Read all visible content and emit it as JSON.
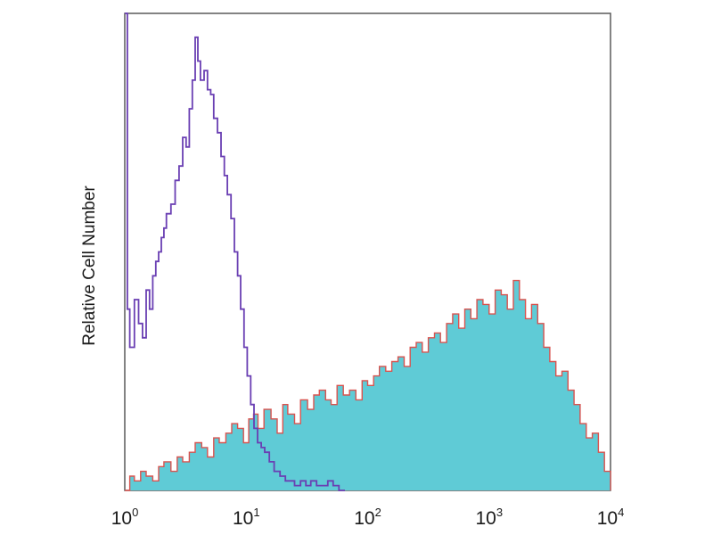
{
  "chart_data": {
    "type": "area",
    "ylabel": "Relative Cell Number",
    "xlabel": "",
    "xscale": "log",
    "xlim": [
      1,
      10000
    ],
    "ylim": [
      0,
      100
    ],
    "grid": false,
    "legend": "none",
    "x_ticks": [
      {
        "base": "10",
        "exp": "0",
        "value": 1
      },
      {
        "base": "10",
        "exp": "1",
        "value": 10
      },
      {
        "base": "10",
        "exp": "2",
        "value": 100
      },
      {
        "base": "10",
        "exp": "3",
        "value": 1000
      },
      {
        "base": "10",
        "exp": "4",
        "value": 10000
      }
    ],
    "series": [
      {
        "style": "filled",
        "fill_color": "#5fcbd6",
        "edge_color": "#d9534f",
        "x": [
          1,
          1.1,
          1.2,
          1.35,
          1.5,
          1.7,
          1.9,
          2.1,
          2.4,
          2.7,
          3.0,
          3.4,
          3.8,
          4.3,
          4.8,
          5.4,
          6.0,
          6.8,
          7.6,
          8.5,
          9.5,
          10.5,
          11.5,
          12.5,
          14,
          16,
          18,
          20,
          22,
          25,
          28,
          32,
          36,
          40,
          45,
          50,
          56,
          63,
          71,
          80,
          90,
          100,
          112,
          125,
          141,
          158,
          178,
          200,
          224,
          251,
          282,
          316,
          355,
          398,
          447,
          501,
          562,
          631,
          708,
          794,
          891,
          1000,
          1122,
          1259,
          1413,
          1585,
          1778,
          1995,
          2239,
          2512,
          2818,
          3162,
          3548,
          3981,
          4467,
          5012,
          5623,
          6310,
          7079,
          7943,
          8913,
          10000
        ],
        "y": [
          0,
          3,
          2,
          4,
          3,
          2,
          5,
          6,
          4,
          7,
          6,
          8,
          10,
          9,
          7,
          11,
          10,
          12,
          14,
          13,
          10,
          15,
          16,
          13,
          17,
          15,
          12,
          18,
          16,
          14,
          19,
          17,
          20,
          21,
          19,
          18,
          22,
          20,
          21,
          19,
          23,
          22,
          24,
          26,
          25,
          27,
          28,
          26,
          30,
          31,
          29,
          32,
          33,
          31,
          35,
          37,
          34,
          38,
          36,
          40,
          39,
          37,
          42,
          41,
          38,
          44,
          40,
          36,
          39,
          35,
          30,
          27,
          24,
          25,
          21,
          18,
          14,
          11,
          12,
          8,
          4,
          0
        ]
      },
      {
        "style": "line",
        "line_color": "#6a3fb3",
        "x": [
          1,
          1.05,
          1.1,
          1.2,
          1.3,
          1.4,
          1.5,
          1.6,
          1.7,
          1.8,
          1.9,
          2.0,
          2.1,
          2.2,
          2.4,
          2.6,
          2.8,
          3.0,
          3.2,
          3.4,
          3.6,
          3.8,
          4.0,
          4.2,
          4.5,
          4.8,
          5.1,
          5.4,
          5.8,
          6.2,
          6.6,
          7.0,
          7.5,
          8.0,
          8.5,
          9.0,
          9.6,
          10.2,
          10.9,
          11.6,
          12.4,
          13.3,
          14.2,
          15.5,
          17,
          19,
          21,
          23,
          25,
          28,
          31,
          34,
          38,
          42,
          47,
          52,
          58,
          65
        ],
        "y": [
          100,
          38,
          30,
          40,
          35,
          32,
          42,
          38,
          45,
          48,
          50,
          53,
          55,
          58,
          60,
          65,
          68,
          74,
          72,
          80,
          86,
          95,
          90,
          86,
          88,
          84,
          83,
          78,
          75,
          70,
          66,
          62,
          57,
          50,
          45,
          38,
          30,
          24,
          18,
          13,
          10,
          9,
          8,
          6,
          4,
          3,
          2,
          2,
          1,
          2,
          1,
          2,
          1,
          1,
          2,
          1,
          0,
          0
        ]
      }
    ]
  }
}
